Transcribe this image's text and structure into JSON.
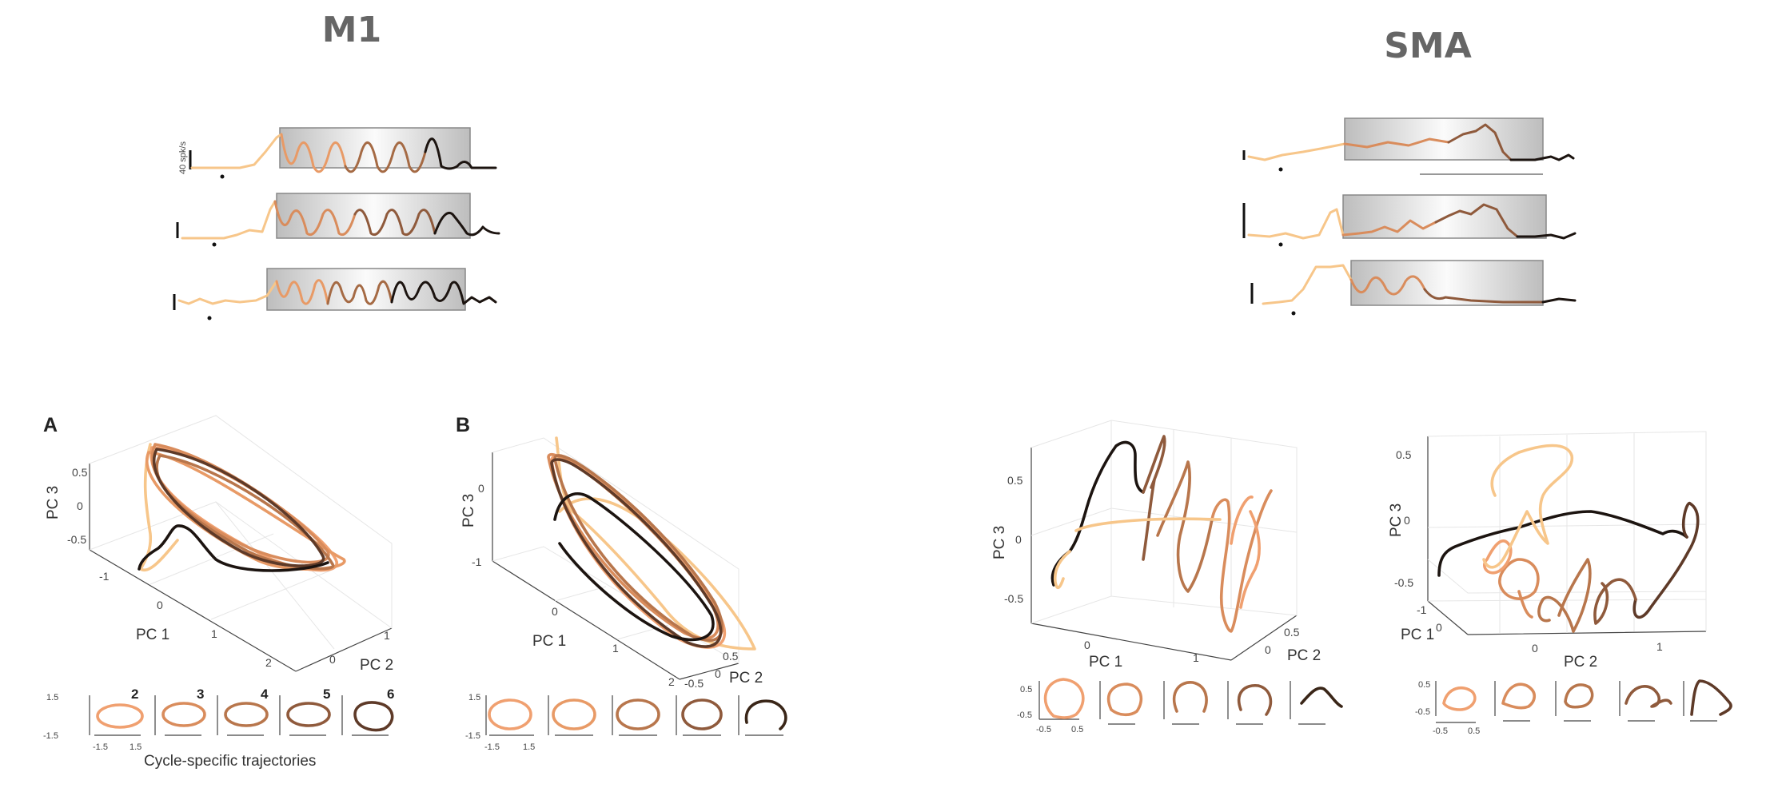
{
  "titles": {
    "left": "M1",
    "right": "SMA"
  },
  "scale_bar_label": "40 spk/s",
  "panel_labels": {
    "a": "A",
    "b": "B"
  },
  "caption": "Cycle-specific trajectories",
  "colors": {
    "cycles": [
      "#f7c68a",
      "#f0a070",
      "#d98c5c",
      "#b8764c",
      "#8f5a3c",
      "#5e3a28",
      "#1c1410"
    ],
    "rate_box": "#cfcfcf",
    "axis": "#444444"
  },
  "plots": {
    "a": {
      "z_axis": "PC 3",
      "x_axis": "PC 1",
      "y_axis": "PC 2",
      "z_ticks": [
        "0.5",
        "0",
        "-0.5"
      ],
      "x_ticks": [
        "-1",
        "0",
        "1",
        "2"
      ],
      "y_ticks": [
        "0",
        "1"
      ]
    },
    "b": {
      "z_axis": "PC 3",
      "x_axis": "PC 1",
      "y_axis": "PC 2",
      "z_ticks": [
        "0",
        "-1"
      ],
      "x_ticks": [
        "0",
        "1",
        "2"
      ],
      "y_ticks": [
        "-0.5",
        "0",
        "0.5"
      ]
    },
    "c": {
      "z_axis": "PC 3",
      "x_axis": "PC 1",
      "y_axis": "PC 2",
      "z_ticks": [
        "0.5",
        "0",
        "-0.5"
      ],
      "x_ticks": [
        "0",
        "1"
      ],
      "y_ticks": [
        "0",
        "0.5"
      ]
    },
    "d": {
      "z_axis": "PC 3",
      "x_axis": "PC 2",
      "y_axis": "PC 1",
      "z_ticks": [
        "0.5",
        "0",
        "-0.5"
      ],
      "x_ticks": [
        "0",
        "1"
      ],
      "y_ticks": [
        "-1",
        "0"
      ]
    }
  },
  "mini": {
    "m1a": {
      "cycle_numbers": [
        "2",
        "3",
        "4",
        "5",
        "6"
      ],
      "y_ticks": [
        "1.5",
        "-1.5"
      ],
      "x_ticks": [
        "-1.5",
        "1.5"
      ]
    },
    "m1b": {
      "y_ticks": [
        "1.5",
        "-1.5"
      ],
      "x_ticks": [
        "-1.5",
        "1.5"
      ]
    },
    "smac": {
      "y_ticks": [
        "0.5",
        "-0.5"
      ],
      "x_ticks": [
        "-0.5",
        "0.5"
      ]
    },
    "smad": {
      "y_ticks": [
        "0.5",
        "-0.5"
      ],
      "x_ticks": [
        "-0.5",
        "0.5"
      ]
    }
  }
}
